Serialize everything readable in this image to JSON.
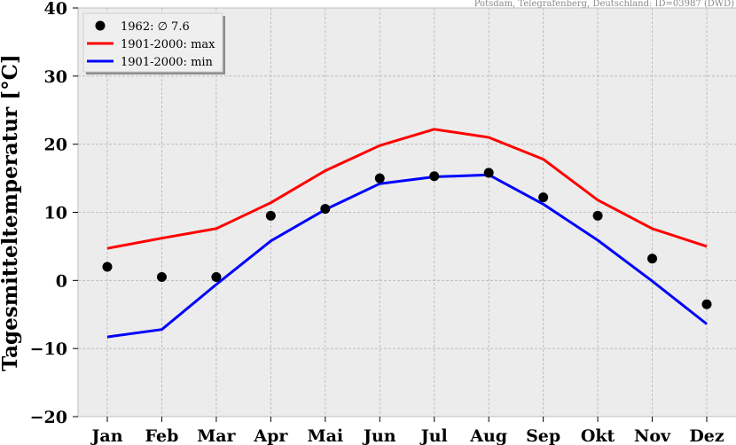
{
  "chart_data": {
    "type": "line",
    "categories": [
      "Jan",
      "Feb",
      "Mar",
      "Apr",
      "Mai",
      "Jun",
      "Jul",
      "Aug",
      "Sep",
      "Okt",
      "Nov",
      "Dez"
    ],
    "ylabel": "Tagesmitteltemperatur [°C]",
    "ylim": [
      -20,
      40
    ],
    "yticks": [
      -20,
      -10,
      0,
      10,
      20,
      30,
      40
    ],
    "grid": true,
    "legend_placement": "top-left",
    "source_note": "Potsdam, Telegrafenberg, Deutschland: ID=03987 (DWD)",
    "series": [
      {
        "name": "1962: ∅ 7.6",
        "kind": "scatter",
        "color": "#000000",
        "values": [
          2.0,
          0.5,
          0.5,
          9.5,
          10.5,
          15.0,
          15.3,
          15.8,
          12.2,
          9.5,
          3.2,
          -3.5
        ]
      },
      {
        "name": "1901-2000: max",
        "kind": "line",
        "color": "#ff0000",
        "values": [
          4.7,
          6.2,
          7.6,
          11.4,
          16.1,
          19.8,
          22.2,
          21.0,
          17.8,
          11.8,
          7.6,
          5.0
        ]
      },
      {
        "name": "1901-2000: min",
        "kind": "line",
        "color": "#0000ff",
        "values": [
          -8.3,
          -7.2,
          -0.6,
          5.8,
          10.4,
          14.2,
          15.2,
          15.5,
          11.2,
          5.9,
          -0.1,
          -6.4
        ]
      }
    ]
  }
}
